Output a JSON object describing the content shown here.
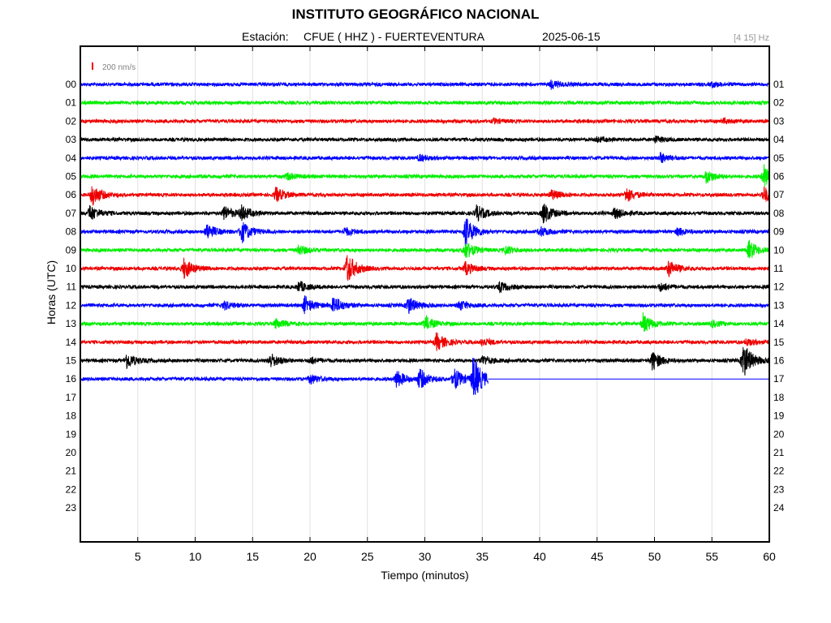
{
  "title": "INSTITUTO GEOGRÁFICO NACIONAL",
  "subtitle": {
    "station_label": "Estación:",
    "station": "CFUE ( HHZ ) - FUERTEVENTURA",
    "date": "2025-06-15"
  },
  "filter_label": "[4 15] Hz",
  "colors": {
    "blue": "#0000ff",
    "green": "#00ee00",
    "red": "#ee0000",
    "black": "#000000",
    "grid": "#e0e0e0"
  },
  "chart_data": {
    "type": "line",
    "xlabel": "Tiempo (minutos)",
    "ylabel": "Horas (UTC)",
    "xlim": [
      0,
      60
    ],
    "x_ticks": [
      "5",
      "10",
      "15",
      "20",
      "25",
      "30",
      "35",
      "40",
      "45",
      "50",
      "55",
      "60"
    ],
    "x_tick_values": [
      5,
      10,
      15,
      20,
      25,
      30,
      35,
      40,
      45,
      50,
      55,
      60
    ],
    "left_labels": [
      "00",
      "01",
      "02",
      "03",
      "04",
      "05",
      "06",
      "07",
      "08",
      "09",
      "10",
      "11",
      "12",
      "13",
      "14",
      "15",
      "16",
      "17",
      "18",
      "19",
      "20",
      "21",
      "22",
      "23"
    ],
    "right_labels": [
      "01",
      "02",
      "03",
      "04",
      "05",
      "06",
      "07",
      "08",
      "09",
      "10",
      "11",
      "12",
      "13",
      "14",
      "15",
      "16",
      "17",
      "18",
      "19",
      "20",
      "21",
      "22",
      "23",
      "24"
    ],
    "scale_label": "200 nm/s",
    "color_cycle": [
      "blue",
      "green",
      "red",
      "black"
    ],
    "grid": true,
    "traces": [
      {
        "hour": "00",
        "color": "blue",
        "end_minute": 60,
        "events": [
          [
            41,
            0.5
          ],
          [
            55,
            0.3
          ]
        ]
      },
      {
        "hour": "01",
        "color": "green",
        "end_minute": 60,
        "events": []
      },
      {
        "hour": "02",
        "color": "red",
        "end_minute": 60,
        "events": [
          [
            36,
            0.25
          ],
          [
            56,
            0.25
          ]
        ]
      },
      {
        "hour": "03",
        "color": "black",
        "end_minute": 60,
        "events": [
          [
            45,
            0.3
          ],
          [
            50,
            0.4
          ]
        ]
      },
      {
        "hour": "04",
        "color": "blue",
        "end_minute": 60,
        "events": [
          [
            29.5,
            0.4
          ],
          [
            50.5,
            0.6
          ]
        ]
      },
      {
        "hour": "05",
        "color": "green",
        "end_minute": 60,
        "events": [
          [
            18,
            0.4
          ],
          [
            54.5,
            0.8
          ],
          [
            59.5,
            1.5
          ]
        ]
      },
      {
        "hour": "06",
        "color": "red",
        "end_minute": 60,
        "events": [
          [
            1,
            1.4
          ],
          [
            17,
            0.9
          ],
          [
            41,
            0.6
          ],
          [
            47.5,
            0.9
          ],
          [
            59.5,
            1.0
          ]
        ]
      },
      {
        "hour": "07",
        "color": "black",
        "end_minute": 60,
        "events": [
          [
            0.8,
            1.0
          ],
          [
            12.5,
            0.9
          ],
          [
            14,
            0.9
          ],
          [
            34.5,
            1.0
          ],
          [
            40.3,
            1.3
          ],
          [
            46.5,
            0.7
          ]
        ]
      },
      {
        "hour": "08",
        "color": "blue",
        "end_minute": 60,
        "events": [
          [
            11,
            1.0
          ],
          [
            14,
            1.4
          ],
          [
            23,
            0.5
          ],
          [
            33.5,
            1.9
          ],
          [
            40,
            0.6
          ],
          [
            52,
            0.5
          ]
        ]
      },
      {
        "hour": "09",
        "color": "green",
        "end_minute": 60,
        "events": [
          [
            19,
            0.6
          ],
          [
            33.5,
            1.1
          ],
          [
            37,
            0.5
          ],
          [
            58.2,
            1.2
          ]
        ]
      },
      {
        "hour": "10",
        "color": "red",
        "end_minute": 60,
        "events": [
          [
            9,
            1.3
          ],
          [
            23.2,
            2.0
          ],
          [
            33.5,
            0.8
          ],
          [
            51.2,
            1.0
          ]
        ]
      },
      {
        "hour": "11",
        "color": "black",
        "end_minute": 60,
        "events": [
          [
            19,
            0.7
          ],
          [
            36.5,
            0.6
          ],
          [
            50.5,
            0.5
          ]
        ]
      },
      {
        "hour": "12",
        "color": "blue",
        "end_minute": 60,
        "events": [
          [
            12.5,
            0.5
          ],
          [
            19.5,
            1.1
          ],
          [
            22,
            1.2
          ],
          [
            28.5,
            1.1
          ],
          [
            33,
            0.6
          ]
        ]
      },
      {
        "hour": "13",
        "color": "green",
        "end_minute": 60,
        "events": [
          [
            17,
            0.6
          ],
          [
            30,
            0.9
          ],
          [
            49,
            1.2
          ],
          [
            55,
            0.4
          ]
        ]
      },
      {
        "hour": "14",
        "color": "red",
        "end_minute": 60,
        "events": [
          [
            31,
            1.1
          ],
          [
            35,
            0.5
          ],
          [
            58,
            0.4
          ]
        ]
      },
      {
        "hour": "15",
        "color": "black",
        "end_minute": 60,
        "events": [
          [
            4,
            1.0
          ],
          [
            16.5,
            0.9
          ],
          [
            20,
            0.4
          ],
          [
            35,
            0.6
          ],
          [
            49.8,
            1.2
          ],
          [
            57.7,
            2.3
          ]
        ]
      },
      {
        "hour": "16",
        "color": "blue",
        "end_minute": 35.5,
        "events": [
          [
            20,
            0.6
          ],
          [
            27.5,
            1.1
          ],
          [
            29.5,
            1.3
          ],
          [
            32.5,
            1.4
          ],
          [
            34.2,
            2.8
          ]
        ]
      }
    ]
  }
}
